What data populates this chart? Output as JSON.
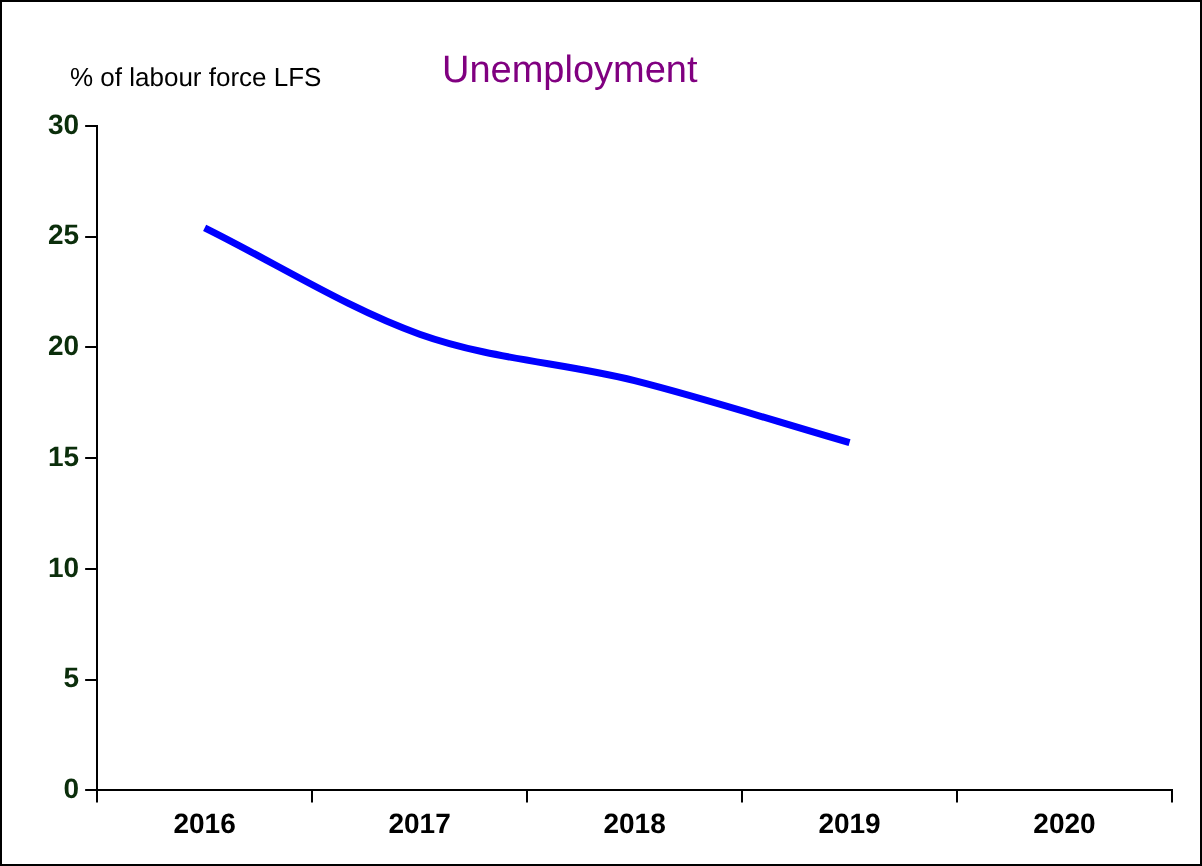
{
  "chart_data": {
    "type": "line",
    "title": "Unemployment",
    "ylabel": "% of labour force LFS",
    "categories": [
      "2016",
      "2017",
      "2018",
      "2019",
      "2020"
    ],
    "series": [
      {
        "color": "#0000ff",
        "values": [
          25.4,
          20.6,
          18.5,
          15.7,
          null
        ]
      }
    ],
    "ylim": [
      0,
      30
    ],
    "yticks": [
      0,
      5,
      10,
      15,
      20,
      25,
      30
    ],
    "grid": false,
    "legend": false,
    "marker": "none",
    "line_style": "solid"
  }
}
